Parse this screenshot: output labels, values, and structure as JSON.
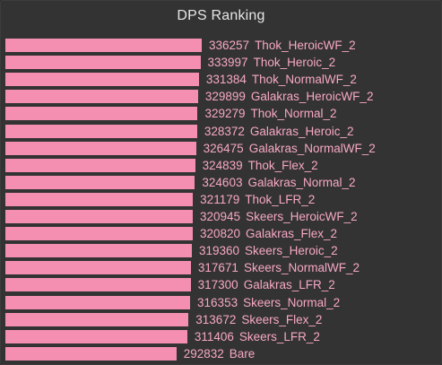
{
  "title": "DPS Ranking",
  "colors": {
    "background": "#333333",
    "bar": "#f48fb1",
    "label": "#f7a8c4",
    "title": "#e6e6e6"
  },
  "chart_data": {
    "type": "bar",
    "orientation": "horizontal",
    "title": "DPS Ranking",
    "xlim": [
      0,
      336257
    ],
    "series": [
      {
        "values": [
          336257,
          333997,
          331384,
          329899,
          329279,
          328372,
          326475,
          324839,
          324603,
          321179,
          320945,
          320820,
          319360,
          317671,
          317300,
          316353,
          313672,
          311406,
          292832
        ]
      }
    ],
    "categories": [
      "Thok_HeroicWF_2",
      "Thok_Heroic_2",
      "Thok_NormalWF_2",
      "Galakras_HeroicWF_2",
      "Thok_Normal_2",
      "Galakras_Heroic_2",
      "Galakras_NormalWF_2",
      "Thok_Flex_2",
      "Galakras_Normal_2",
      "Thok_LFR_2",
      "Skeers_HeroicWF_2",
      "Galakras_Flex_2",
      "Skeers_Heroic_2",
      "Skeers_NormalWF_2",
      "Galakras_LFR_2",
      "Skeers_Normal_2",
      "Skeers_Flex_2",
      "Skeers_LFR_2",
      "Bare"
    ]
  }
}
